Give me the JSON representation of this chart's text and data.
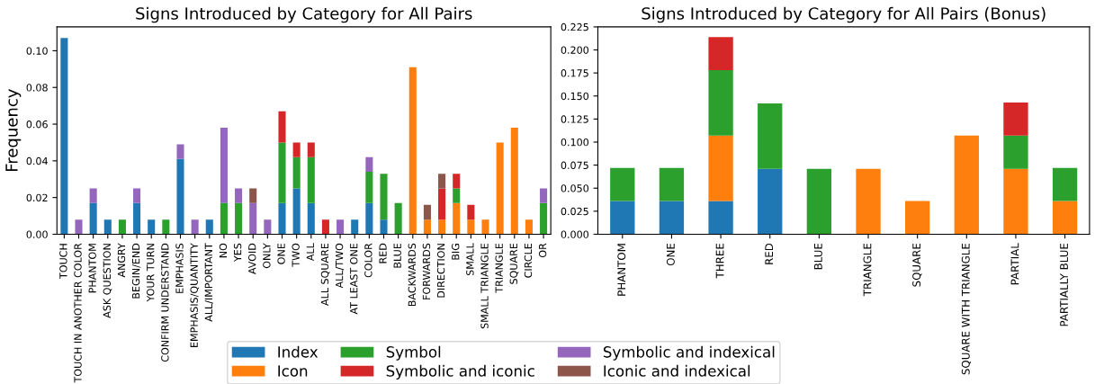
{
  "chart_data": [
    {
      "type": "bar",
      "title": "Signs Introduced by Category for All Pairs",
      "ylabel": "Frequency",
      "stacked": true,
      "legend": "bottom",
      "grid": false,
      "categories": [
        "TOUCH",
        "TOUCH IN ANOTHER COLOR",
        "PHANTOM",
        "ASK QUESTION",
        "ANGRY",
        "BEGIN/END",
        "YOUR TURN",
        "CONFIRM UNDERSTAND",
        "EMPHASIS",
        "EMPHASIS/QUANTITY",
        "ALL/IMPORTANT",
        "NO",
        "YES",
        "AVOID",
        "ONLY",
        "ONE",
        "TWO",
        "ALL",
        "ALL SQUARE",
        "ALL/TWO",
        "AT LEAST ONE",
        "COLOR",
        "RED",
        "BLUE",
        "BACKWARDS",
        "FORWARDS",
        "DIRECTION",
        "BIG",
        "SMALL",
        "SMALL TRIANGLE",
        "TRIANGLE",
        "SQUARE",
        "CIRCLE",
        "OR"
      ],
      "ylim": [
        0,
        0.113
      ],
      "yticks": [
        {
          "value": 0,
          "label": "0.00"
        },
        {
          "value": 0.02,
          "label": "0.02"
        },
        {
          "value": 0.04,
          "label": "0.04"
        },
        {
          "value": 0.06,
          "label": "0.06"
        },
        {
          "value": 0.08,
          "label": "0.08"
        },
        {
          "value": 0.1,
          "label": "0.10"
        }
      ],
      "series": [
        {
          "name": "Index",
          "color": "#1f77b4",
          "values": [
            0.107,
            0,
            0.017,
            0.008,
            0,
            0.017,
            0.008,
            0,
            0.041,
            0,
            0.008,
            0,
            0,
            0,
            0,
            0.017,
            0.025,
            0.017,
            0,
            0,
            0.008,
            0.017,
            0.008,
            0,
            0,
            0,
            0,
            0,
            0,
            0,
            0,
            0,
            0,
            0
          ]
        },
        {
          "name": "Icon",
          "color": "#ff7f0e",
          "values": [
            0,
            0,
            0,
            0,
            0,
            0,
            0,
            0,
            0,
            0,
            0,
            0,
            0,
            0,
            0,
            0,
            0,
            0,
            0,
            0,
            0,
            0,
            0,
            0,
            0.091,
            0.008,
            0.008,
            0.017,
            0.008,
            0.008,
            0.05,
            0.058,
            0.008,
            0
          ]
        },
        {
          "name": "Symbol",
          "color": "#2ca02c",
          "values": [
            0,
            0,
            0,
            0,
            0.008,
            0,
            0,
            0.008,
            0,
            0,
            0,
            0.017,
            0.017,
            0,
            0,
            0.033,
            0.017,
            0.025,
            0,
            0,
            0,
            0.017,
            0.025,
            0.017,
            0,
            0,
            0,
            0.008,
            0,
            0,
            0,
            0,
            0,
            0.017
          ]
        },
        {
          "name": "Symbolic and iconic",
          "color": "#d62728",
          "values": [
            0,
            0,
            0,
            0,
            0,
            0,
            0,
            0,
            0,
            0,
            0,
            0,
            0,
            0,
            0,
            0.017,
            0.008,
            0.008,
            0.008,
            0,
            0,
            0,
            0,
            0,
            0,
            0,
            0.017,
            0.008,
            0.008,
            0,
            0,
            0,
            0,
            0
          ]
        },
        {
          "name": "Symbolic and indexical",
          "color": "#9467bd",
          "values": [
            0,
            0.008,
            0.008,
            0,
            0,
            0.008,
            0,
            0,
            0.008,
            0.008,
            0,
            0.041,
            0.008,
            0.017,
            0.008,
            0,
            0,
            0,
            0,
            0.008,
            0,
            0.008,
            0,
            0,
            0,
            0,
            0,
            0,
            0,
            0,
            0,
            0,
            0,
            0.008
          ]
        },
        {
          "name": "Iconic and indexical",
          "color": "#8c564b",
          "values": [
            0,
            0,
            0,
            0,
            0,
            0,
            0,
            0,
            0,
            0,
            0,
            0,
            0,
            0.008,
            0,
            0,
            0,
            0,
            0,
            0,
            0,
            0,
            0,
            0,
            0,
            0.008,
            0.008,
            0,
            0,
            0,
            0,
            0,
            0,
            0
          ]
        }
      ]
    },
    {
      "type": "bar",
      "title": "Signs Introduced by Category for All Pairs (Bonus)",
      "stacked": true,
      "legend": "bottom",
      "grid": false,
      "categories": [
        "PHANTOM",
        "ONE",
        "THREE",
        "RED",
        "BLUE",
        "TRIANGLE",
        "SQUARE",
        "SQUARE WITH TRIANGLE",
        "PARTIAL",
        "PARTIALLY BLUE"
      ],
      "ylim": [
        0,
        0.225
      ],
      "yticks": [
        {
          "value": 0,
          "label": "0.000"
        },
        {
          "value": 0.025,
          "label": "0.025"
        },
        {
          "value": 0.05,
          "label": "0.050"
        },
        {
          "value": 0.075,
          "label": "0.075"
        },
        {
          "value": 0.1,
          "label": "0.100"
        },
        {
          "value": 0.125,
          "label": "0.125"
        },
        {
          "value": 0.15,
          "label": "0.150"
        },
        {
          "value": 0.175,
          "label": "0.175"
        },
        {
          "value": 0.2,
          "label": "0.200"
        },
        {
          "value": 0.225,
          "label": "0.225"
        }
      ],
      "series": [
        {
          "name": "Index",
          "color": "#1f77b4",
          "values": [
            0.036,
            0.036,
            0.036,
            0.071,
            0,
            0,
            0,
            0,
            0,
            0
          ]
        },
        {
          "name": "Icon",
          "color": "#ff7f0e",
          "values": [
            0,
            0,
            0.071,
            0,
            0,
            0.071,
            0.036,
            0.107,
            0.071,
            0.036
          ]
        },
        {
          "name": "Symbol",
          "color": "#2ca02c",
          "values": [
            0.036,
            0.036,
            0.071,
            0.071,
            0.071,
            0,
            0,
            0,
            0.036,
            0.036
          ]
        },
        {
          "name": "Symbolic and iconic",
          "color": "#d62728",
          "values": [
            0,
            0,
            0.036,
            0,
            0,
            0,
            0,
            0,
            0.036,
            0
          ]
        },
        {
          "name": "Symbolic and indexical",
          "color": "#9467bd",
          "values": [
            0,
            0,
            0,
            0,
            0,
            0,
            0,
            0,
            0,
            0
          ]
        },
        {
          "name": "Iconic and indexical",
          "color": "#8c564b",
          "values": [
            0,
            0,
            0,
            0,
            0,
            0,
            0,
            0,
            0,
            0
          ]
        }
      ]
    }
  ]
}
